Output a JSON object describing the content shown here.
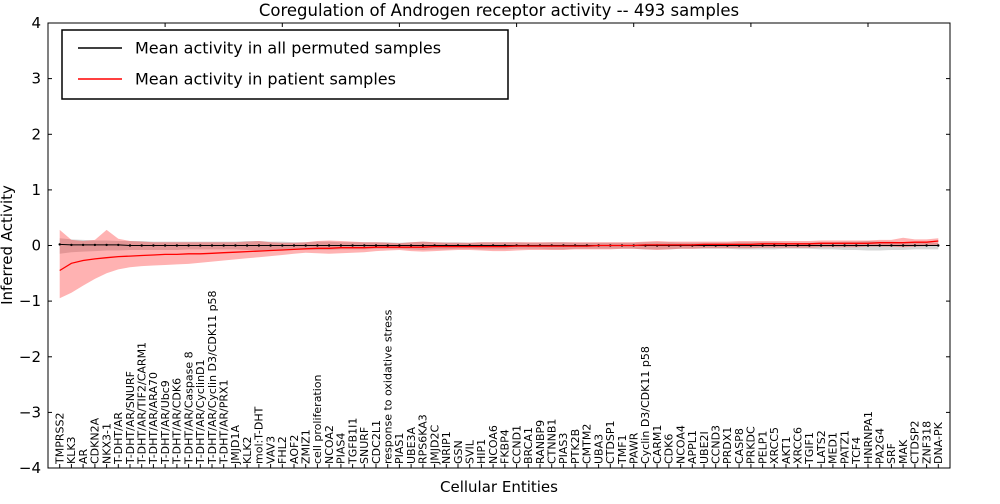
{
  "title": "Coregulation of Androgen receptor activity -- 493 samples",
  "axes": {
    "xlabel": "Cellular Entities",
    "ylabel": "Inferred Activity",
    "ytick_values": [
      4,
      3,
      2,
      1,
      0,
      -1,
      -2,
      -3,
      -4
    ],
    "ytick_labels": [
      "4",
      "3",
      "2",
      "1",
      "0",
      "−1",
      "−2",
      "−3",
      "−4"
    ]
  },
  "legend": {
    "entries": [
      {
        "label": "Mean activity in all permuted samples",
        "color": "#000000"
      },
      {
        "label": "Mean activity in patient samples",
        "color": "#ff0000"
      }
    ]
  },
  "colors": {
    "permuted_line": "#000000",
    "patient_line": "#ff0000",
    "permuted_band": "#b0b0b0",
    "patient_band": "#ff0000",
    "frame": "#000000"
  },
  "chart_data": {
    "type": "line",
    "title": "Coregulation of Androgen receptor activity -- 493 samples",
    "xlabel": "Cellular Entities",
    "ylabel": "Inferred Activity",
    "ylim": [
      -4,
      4
    ],
    "grid": false,
    "legend_position": "upper left",
    "categories": [
      "TMPRSS2",
      "KLK3",
      "AR",
      "CDKN2A",
      "NKX3-1",
      "T-DHT/AR",
      "T-DHT/AR/SNURF",
      "T-DHT/AR/TIF2/CARM1",
      "T-DHT/AR/ARA70",
      "T-DHT/AR/Ubc9",
      "T-DHT/AR/CDK6",
      "T-DHT/AR/Caspase 8",
      "T-DHT/AR/CyclinD1",
      "T-DHT/AR/Cyclin D3/CDK11 p58",
      "T-DHT/AR/PRX1",
      "JMJD1A",
      "KLK2",
      "mol:T-DHT",
      "VAV3",
      "FHL2",
      "AOF2",
      "ZMIZ1",
      "cell proliferation",
      "NCOA2",
      "PIAS4",
      "TGFB1I1",
      "SNURF",
      "CDC2L1",
      "response to oxidative stress",
      "PIAS1",
      "UBE3A",
      "RPS6KA3",
      "JMJD2C",
      "NRIP1",
      "GSN",
      "SVIL",
      "HIP1",
      "NCOA6",
      "FKBP4",
      "CCND1",
      "BRCA1",
      "RANBP9",
      "CTNNB1",
      "PIAS3",
      "PTK2B",
      "CMTM2",
      "UBA3",
      "CTDSP1",
      "TMF1",
      "PAWR",
      "Cyclin D3/CDK11 p58",
      "CARM1",
      "CDK6",
      "NCOA4",
      "APPL1",
      "UBE2I",
      "CCND3",
      "PRDX1",
      "CASP8",
      "PRKDC",
      "PELP1",
      "XRCC5",
      "AKT1",
      "XRCC6",
      "TGIF1",
      "LATS2",
      "MED1",
      "PATZ1",
      "TCF4",
      "HNRNPA1",
      "PA2G4",
      "SRF",
      "MAK",
      "CTDSP2",
      "ZNF318",
      "DNA-PK"
    ],
    "series": [
      {
        "name": "Mean activity in all permuted samples",
        "color": "#000000",
        "values": [
          0.02,
          0.01,
          0.01,
          0.01,
          0.01,
          0.01,
          0,
          0,
          0,
          0,
          0,
          0,
          0,
          0,
          0,
          0,
          0,
          0,
          0,
          0,
          0,
          0,
          0,
          0,
          0,
          0,
          0,
          0,
          0,
          0,
          0,
          0,
          0,
          0,
          0,
          0,
          0,
          0,
          0,
          0,
          0,
          0,
          0,
          0,
          0,
          0,
          0,
          0,
          0,
          0,
          0,
          0,
          0,
          0,
          0,
          0,
          0,
          0,
          0,
          0,
          0,
          0,
          0,
          0,
          0,
          0,
          0,
          0,
          0,
          0,
          0,
          0,
          0,
          0,
          0,
          0
        ],
        "band_low": [
          -0.15,
          -0.12,
          -0.11,
          -0.1,
          -0.09,
          -0.09,
          -0.08,
          -0.08,
          -0.08,
          -0.08,
          -0.08,
          -0.07,
          -0.07,
          -0.07,
          -0.07,
          -0.07,
          -0.08,
          -0.09,
          -0.08,
          -0.07,
          -0.07,
          -0.07,
          -0.08,
          -0.08,
          -0.07,
          -0.07,
          -0.07,
          -0.06,
          -0.06,
          -0.06,
          -0.07,
          -0.08,
          -0.07,
          -0.07,
          -0.06,
          -0.06,
          -0.07,
          -0.07,
          -0.07,
          -0.06,
          -0.06,
          -0.06,
          -0.07,
          -0.07,
          -0.06,
          -0.06,
          -0.06,
          -0.06,
          -0.06,
          -0.06,
          -0.07,
          -0.07,
          -0.07,
          -0.06,
          -0.06,
          -0.06,
          -0.06,
          -0.06,
          -0.07,
          -0.07,
          -0.07,
          -0.07,
          -0.06,
          -0.06,
          -0.06,
          -0.07,
          -0.07,
          -0.08,
          -0.08,
          -0.09,
          -0.09,
          -0.08,
          -0.08,
          -0.07,
          -0.07,
          -0.07
        ],
        "band_high": [
          0.13,
          0.11,
          0.1,
          0.09,
          0.09,
          0.08,
          0.08,
          0.08,
          0.07,
          0.07,
          0.07,
          0.07,
          0.07,
          0.07,
          0.07,
          0.07,
          0.08,
          0.08,
          0.07,
          0.07,
          0.06,
          0.06,
          0.07,
          0.07,
          0.06,
          0.06,
          0.06,
          0.06,
          0.06,
          0.05,
          0.06,
          0.07,
          0.06,
          0.06,
          0.06,
          0.05,
          0.06,
          0.06,
          0.06,
          0.06,
          0.05,
          0.05,
          0.06,
          0.06,
          0.05,
          0.05,
          0.05,
          0.05,
          0.05,
          0.05,
          0.06,
          0.06,
          0.06,
          0.05,
          0.05,
          0.05,
          0.05,
          0.05,
          0.06,
          0.06,
          0.06,
          0.06,
          0.05,
          0.05,
          0.05,
          0.06,
          0.06,
          0.07,
          0.07,
          0.08,
          0.07,
          0.07,
          0.06,
          0.06,
          0.05,
          0.05
        ]
      },
      {
        "name": "Mean activity in patient samples",
        "color": "#ff0000",
        "values": [
          -0.45,
          -0.32,
          -0.27,
          -0.24,
          -0.22,
          -0.2,
          -0.19,
          -0.18,
          -0.17,
          -0.16,
          -0.16,
          -0.15,
          -0.15,
          -0.14,
          -0.13,
          -0.12,
          -0.11,
          -0.1,
          -0.09,
          -0.08,
          -0.07,
          -0.06,
          -0.05,
          -0.05,
          -0.04,
          -0.04,
          -0.04,
          -0.03,
          -0.03,
          -0.03,
          -0.03,
          -0.03,
          -0.02,
          -0.02,
          -0.02,
          -0.02,
          -0.02,
          -0.02,
          -0.02,
          -0.01,
          -0.01,
          -0.01,
          -0.01,
          -0.01,
          -0.01,
          -0.01,
          0,
          0,
          0,
          0,
          0.01,
          0.01,
          0.01,
          0.01,
          0.01,
          0.02,
          0.02,
          0.02,
          0.02,
          0.02,
          0.03,
          0.03,
          0.03,
          0.03,
          0.03,
          0.04,
          0.04,
          0.04,
          0.04,
          0.04,
          0.05,
          0.05,
          0.05,
          0.06,
          0.06,
          0.08
        ],
        "band_low": [
          -0.95,
          -0.85,
          -0.72,
          -0.6,
          -0.5,
          -0.43,
          -0.39,
          -0.37,
          -0.36,
          -0.35,
          -0.34,
          -0.33,
          -0.31,
          -0.29,
          -0.27,
          -0.25,
          -0.23,
          -0.21,
          -0.19,
          -0.17,
          -0.15,
          -0.13,
          -0.14,
          -0.15,
          -0.14,
          -0.13,
          -0.12,
          -0.1,
          -0.09,
          -0.08,
          -0.1,
          -0.11,
          -0.1,
          -0.09,
          -0.08,
          -0.08,
          -0.09,
          -0.1,
          -0.1,
          -0.09,
          -0.08,
          -0.08,
          -0.08,
          -0.08,
          -0.07,
          -0.07,
          -0.07,
          -0.07,
          -0.06,
          -0.06,
          -0.07,
          -0.08,
          -0.07,
          -0.06,
          -0.06,
          -0.05,
          -0.05,
          -0.05,
          -0.05,
          -0.05,
          -0.04,
          -0.04,
          -0.04,
          -0.04,
          -0.04,
          -0.03,
          -0.03,
          -0.03,
          -0.03,
          -0.02,
          -0.02,
          -0.02,
          -0.03,
          -0.02,
          -0.01,
          0
        ],
        "band_high": [
          0.28,
          0.1,
          0.08,
          0.1,
          0.28,
          0.12,
          0.08,
          0.07,
          0.06,
          0.06,
          0.06,
          0.06,
          0.06,
          0.06,
          0.06,
          0.06,
          0.07,
          0.08,
          0.06,
          0.05,
          0.05,
          0.06,
          0.08,
          0.09,
          0.08,
          0.07,
          0.06,
          0.06,
          0.05,
          0.04,
          0.06,
          0.07,
          0.06,
          0.05,
          0.05,
          0.05,
          0.06,
          0.06,
          0.06,
          0.06,
          0.06,
          0.06,
          0.06,
          0.06,
          0.06,
          0.06,
          0.06,
          0.06,
          0.06,
          0.06,
          0.07,
          0.08,
          0.07,
          0.07,
          0.07,
          0.07,
          0.07,
          0.07,
          0.08,
          0.08,
          0.08,
          0.08,
          0.08,
          0.08,
          0.08,
          0.09,
          0.09,
          0.09,
          0.09,
          0.09,
          0.1,
          0.1,
          0.14,
          0.11,
          0.11,
          0.13
        ]
      }
    ]
  }
}
